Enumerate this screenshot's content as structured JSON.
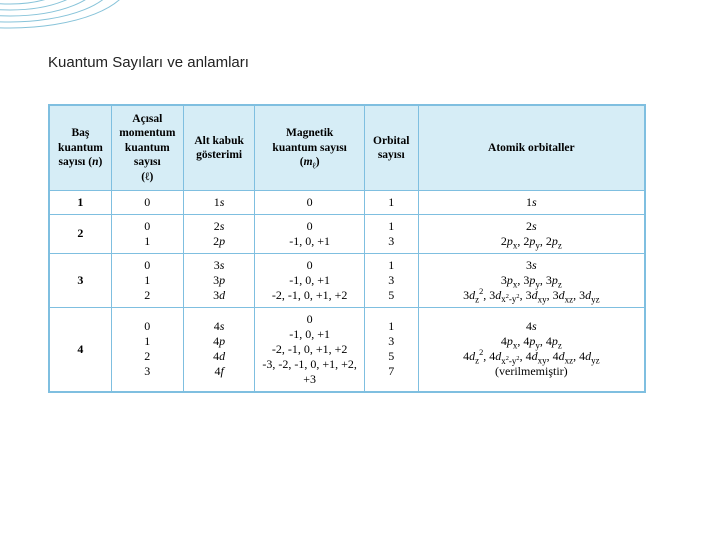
{
  "decor": {
    "ellipse_stroke": "#87c3d9",
    "ellipse_count": 6,
    "background": "#ffffff"
  },
  "title": "Kuantum Sayıları ve anlamları",
  "table": {
    "border_color": "#7fbfe0",
    "header_bg": "#d6edf6",
    "columns": [
      {
        "key": "n",
        "label_html": "Baş<br>kuantum<br>sayısı (<span class='ital'>n</span>)"
      },
      {
        "key": "l",
        "label_html": "Açısal<br>momentum<br>kuantum sayısı<br>(ℓ)"
      },
      {
        "key": "subshell",
        "label_html": "Alt kabuk<br>gösterimi"
      },
      {
        "key": "ml",
        "label_html": "Magnetik<br>kuantum sayısı<br>(<span class='ital'>m</span><sub>ℓ</sub>)"
      },
      {
        "key": "orb_n",
        "label_html": "Orbital<br>sayısı"
      },
      {
        "key": "orbitals",
        "label_html": "Atomik orbitaller"
      }
    ],
    "rows": [
      {
        "n": "1",
        "l_html": "0",
        "subshell_html": "1<span class='ital'>s</span>",
        "ml_html": "0",
        "orb_n_html": "1",
        "orbitals_html": "1<span class='ital'>s</span>"
      },
      {
        "n": "2",
        "l_html": "0<br>1",
        "subshell_html": "2<span class='ital'>s</span><br>2<span class='ital'>p</span>",
        "ml_html": "0<br>-1, 0, +1",
        "orb_n_html": "1<br>3",
        "orbitals_html": "2<span class='ital'>s</span><br>2<span class='ital'>p</span><sub>x</sub>, 2<span class='ital'>p</span><sub>y</sub>, 2<span class='ital'>p</span><sub>z</sub>"
      },
      {
        "n": "3",
        "l_html": "0<br>1<br>2",
        "subshell_html": "3<span class='ital'>s</span><br>3<span class='ital'>p</span><br>3<span class='ital'>d</span>",
        "ml_html": "0<br>-1, 0, +1<br>-2, -1, 0, +1, +2",
        "orb_n_html": "1<br>3<br>5",
        "orbitals_html": "3<span class='ital'>s</span><br>3<span class='ital'>p</span><sub>x</sub>, 3<span class='ital'>p</span><sub>y</sub>, 3<span class='ital'>p</span><sub>z</sub><br>3<span class='ital'>d</span><sub>z</sub><sup>2</sup>, 3<span class='ital'>d</span><sub>x<sup>2</sup>-y<sup>2</sup></sub>, 3<span class='ital'>d</span><sub>xy</sub>, 3<span class='ital'>d</span><sub>xz</sub>, 3<span class='ital'>d</span><sub>yz</sub>"
      },
      {
        "n": "4",
        "l_html": "0<br>1<br>2<br>3",
        "subshell_html": "4<span class='ital'>s</span><br>4<span class='ital'>p</span><br>4<span class='ital'>d</span><br>4<span class='ital'>f</span>",
        "ml_html": "0<br>-1, 0, +1<br>-2, -1, 0, +1, +2<br>-3, -2, -1, 0, +1, +2, +3",
        "orb_n_html": "1<br>3<br>5<br>7",
        "orbitals_html": "4<span class='ital'>s</span><br>4<span class='ital'>p</span><sub>x</sub>, 4<span class='ital'>p</span><sub>y</sub>, 4<span class='ital'>p</span><sub>z</sub><br>4<span class='ital'>d</span><sub>z</sub><sup>2</sup>, 4<span class='ital'>d</span><sub>x<sup>2</sup>-y<sup>2</sup></sub>, 4<span class='ital'>d</span><sub>xy</sub>, 4<span class='ital'>d</span><sub>xz</sub>, 4<span class='ital'>d</span><sub>yz</sub><br>(verilmemiştir)"
      }
    ]
  }
}
